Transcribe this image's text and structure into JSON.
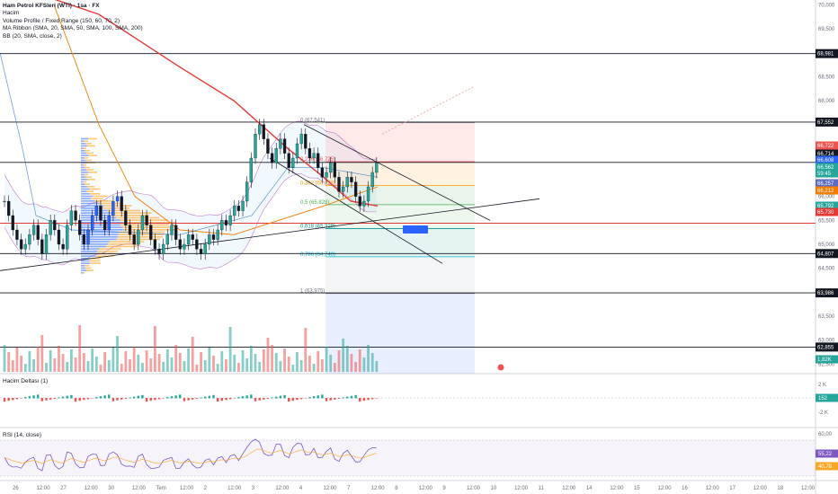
{
  "legend": {
    "title": "Ham Petrol KFSleri (WTI) · 1sa · FX",
    "volume": "Hacim",
    "vp": "Volume Profile / Fixed Range (150, 60, 70, 2)",
    "ma": "MA Ribbon (SMA, 20, SMA, 50, SMA, 100, SMA, 200)",
    "bb": "BB (20, SMA, close, 2)"
  },
  "panes": {
    "delta_title": "Hacim Deltası (1)",
    "rsi_title": "RSI (14, close)"
  },
  "colors": {
    "up": "#26a69a",
    "down": "#ef5350",
    "blue_candle": "#2962ff",
    "ma200": "#e53935",
    "ma100": "#f57c00",
    "bb": "#9c27b0",
    "ma20": "#1565c0",
    "fib_red": "#ff5252",
    "fib_green": "#4caf50",
    "fib_teal": "#009688",
    "rsi": "#7e57c2"
  },
  "chart_data": {
    "type": "candlestick",
    "price_axis": {
      "ticks": [
        "70,000",
        "69,500",
        "68,500",
        "68,000",
        "67,500",
        "66,500",
        "66,000",
        "65,500",
        "65,000",
        "64,500",
        "63,500",
        "63,000",
        "62,500"
      ],
      "ylim": [
        62.3,
        70.1
      ]
    },
    "x_labels": [
      "26",
      "12:00",
      "27",
      "12:00",
      "30",
      "12:00",
      "Tem",
      "12:00",
      "2",
      "12:00",
      "3",
      "12:00",
      "4",
      "12:00",
      "7",
      "12:00",
      "8",
      "12:00",
      "9",
      "12:00",
      "10",
      "12:00",
      "11",
      "12:00",
      "14",
      "12:00",
      "15",
      "12:00",
      "16",
      "12:00",
      "17",
      "12:00",
      "18",
      "12:00"
    ],
    "horizontal_levels": [
      {
        "value": 68.981,
        "label": "68,981"
      },
      {
        "value": 67.552,
        "label": "67,552"
      },
      {
        "value": 64.807,
        "label": "64,807"
      },
      {
        "value": 63.986,
        "label": "63,986"
      },
      {
        "value": 62.855,
        "label": "62,855"
      }
    ],
    "price_badges": [
      {
        "label": "66,722",
        "color": "#ef5350"
      },
      {
        "label": "66,714",
        "color": "#131722"
      },
      {
        "label": "66,608",
        "color": "#2962ff"
      },
      {
        "label": "66,562",
        "color": "#26a69a"
      },
      {
        "label": "59:45",
        "color": "#26a69a"
      },
      {
        "label": "66,257",
        "color": "#5c6bc0"
      },
      {
        "label": "66,212",
        "color": "#f57c00"
      },
      {
        "label": "65,792",
        "color": "#26a69a"
      },
      {
        "label": "65,730",
        "color": "#e53935"
      },
      {
        "label": "1,82K",
        "color": "#26a69a"
      }
    ],
    "fib_levels": [
      {
        "label": "0 (67,541)",
        "value": 67.541
      },
      {
        "label": "0,236 (66,725)",
        "value": 66.725
      },
      {
        "label": "0,382 (66,228)",
        "value": 66.228
      },
      {
        "label": "0,5 (65,828)",
        "value": 65.828
      },
      {
        "label": "0,618 (65,329)",
        "value": 65.329
      },
      {
        "label": "0,786 (64,740)",
        "value": 64.74
      },
      {
        "label": "1 (63,975)",
        "value": 63.975
      }
    ],
    "delta_axis": [
      "2 K",
      "152",
      "-2 K"
    ],
    "rsi_axis": [
      "60,00",
      "55,22",
      "40,78"
    ],
    "close_series": [
      65.9,
      65.6,
      65.3,
      65.1,
      64.9,
      65.0,
      65.2,
      65.4,
      65.1,
      64.8,
      65.2,
      65.5,
      65.3,
      65.0,
      64.9,
      65.4,
      65.7,
      65.5,
      65.2,
      65.0,
      65.3,
      65.6,
      65.8,
      65.5,
      65.3,
      65.6,
      65.9,
      66.0,
      65.7,
      65.4,
      65.2,
      65.0,
      65.3,
      65.6,
      65.4,
      65.1,
      64.9,
      64.8,
      65.0,
      65.2,
      65.4,
      65.1,
      64.9,
      65.0,
      65.2,
      65.1,
      64.9,
      64.8,
      65.0,
      65.2,
      65.1,
      65.3,
      65.5,
      65.4,
      65.6,
      65.8,
      65.7,
      65.9,
      66.3,
      66.8,
      67.3,
      67.5,
      67.2,
      66.9,
      66.7,
      67.0,
      67.2,
      66.9,
      66.6,
      66.8,
      67.1,
      67.3,
      67.0,
      66.8,
      66.9,
      66.6,
      66.4,
      66.5,
      66.7,
      66.4,
      66.1,
      66.2,
      66.4,
      66.3,
      66.0,
      65.8,
      65.9,
      66.2,
      66.5,
      66.7
    ]
  }
}
